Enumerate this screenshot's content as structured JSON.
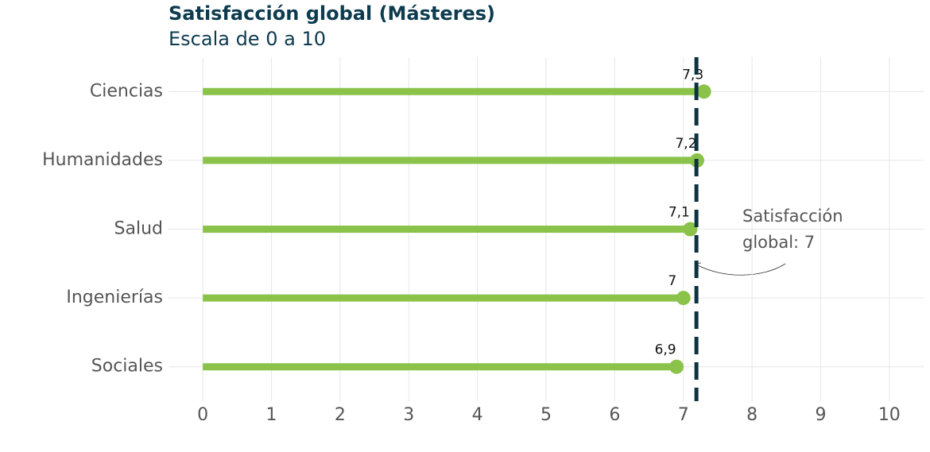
{
  "chart_data": {
    "type": "lollipop",
    "title": "Satisfacción global (Másteres)",
    "subtitle": "Escala de 0 a 10",
    "categories": [
      "Ciencias",
      "Humanidades",
      "Salud",
      "Ingenierías",
      "Sociales"
    ],
    "values": [
      7.3,
      7.2,
      7.1,
      7,
      6.9
    ],
    "value_labels": [
      "7,3",
      "7,2",
      "7,1",
      "7",
      "6,9"
    ],
    "color": "#8bc34a",
    "reference_line": {
      "value": 7.19,
      "color": "#0d3340",
      "label": "Satisfacción global: 7"
    },
    "xlim": [
      -0.5,
      10.5
    ],
    "xticks": [
      0,
      1,
      2,
      3,
      4,
      5,
      6,
      7,
      8,
      9,
      10
    ],
    "grid": true
  }
}
